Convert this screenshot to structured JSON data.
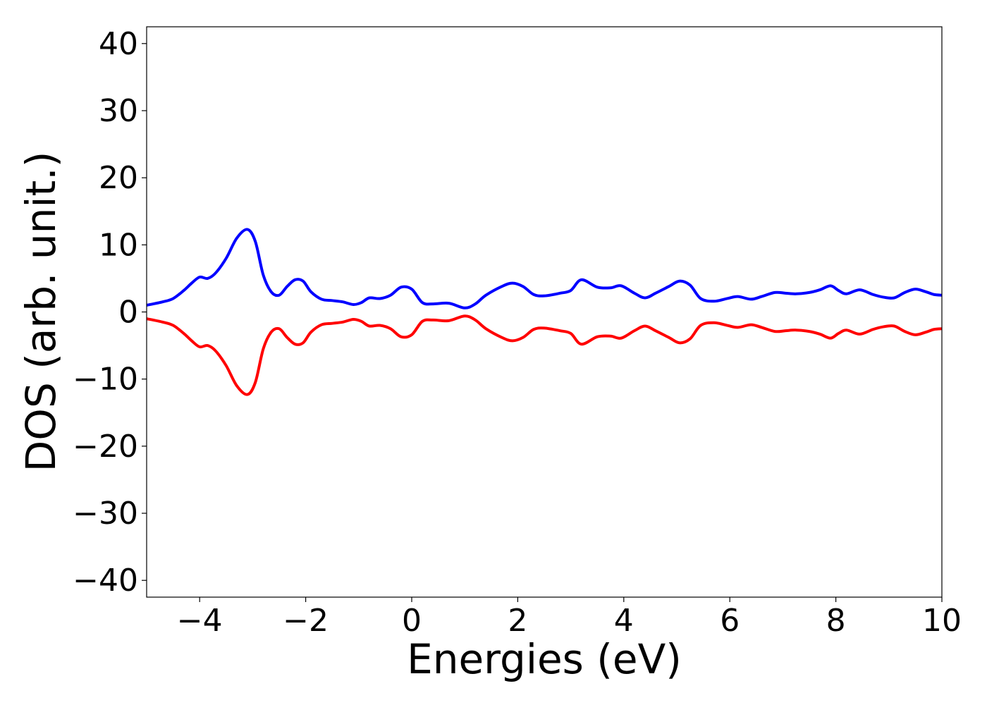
{
  "chart_data": {
    "type": "line",
    "title": "",
    "xlabel": "Energies (eV)",
    "ylabel": "DOS (arb. unit.)",
    "xlim": [
      -5,
      10
    ],
    "ylim": [
      -42.5,
      42.5
    ],
    "x_ticks": [
      -4,
      -2,
      0,
      2,
      4,
      6,
      8,
      10
    ],
    "y_ticks": [
      -40,
      -30,
      -20,
      -10,
      0,
      10,
      20,
      30,
      40
    ],
    "x_tick_labels": [
      "−4",
      "−2",
      "0",
      "2",
      "4",
      "6",
      "8",
      "10"
    ],
    "y_tick_labels": [
      "−40",
      "−30",
      "−20",
      "−10",
      "0",
      "10",
      "20",
      "30",
      "40"
    ],
    "grid": false,
    "series": [
      {
        "color": "#0000ff",
        "x": [
          -5.0,
          -4.7,
          -4.5,
          -4.3,
          -4.15,
          -4.0,
          -3.85,
          -3.7,
          -3.5,
          -3.3,
          -3.1,
          -2.95,
          -2.8,
          -2.65,
          -2.5,
          -2.35,
          -2.2,
          -2.05,
          -1.9,
          -1.7,
          -1.5,
          -1.3,
          -1.1,
          -0.95,
          -0.8,
          -0.6,
          -0.4,
          -0.2,
          0.0,
          0.2,
          0.4,
          0.7,
          1.0,
          1.2,
          1.4,
          1.7,
          1.9,
          2.1,
          2.3,
          2.5,
          2.8,
          3.0,
          3.2,
          3.5,
          3.75,
          3.95,
          4.2,
          4.4,
          4.6,
          4.85,
          5.05,
          5.25,
          5.45,
          5.7,
          5.95,
          6.15,
          6.4,
          6.6,
          6.85,
          7.05,
          7.25,
          7.5,
          7.7,
          7.9,
          8.05,
          8.2,
          8.45,
          8.7,
          8.9,
          9.1,
          9.3,
          9.5,
          9.7,
          9.85,
          10.0
        ],
        "y": [
          1.0,
          1.5,
          2.0,
          3.2,
          4.3,
          5.2,
          5.0,
          5.8,
          8.0,
          11.0,
          12.3,
          10.5,
          5.5,
          3.0,
          2.5,
          3.8,
          4.8,
          4.6,
          3.0,
          1.9,
          1.7,
          1.5,
          1.1,
          1.4,
          2.1,
          2.0,
          2.5,
          3.7,
          3.4,
          1.4,
          1.2,
          1.3,
          0.6,
          1.2,
          2.5,
          3.8,
          4.3,
          3.8,
          2.6,
          2.4,
          2.8,
          3.2,
          4.8,
          3.7,
          3.6,
          3.9,
          2.8,
          2.1,
          2.8,
          3.8,
          4.6,
          4.0,
          2.0,
          1.6,
          2.0,
          2.3,
          1.9,
          2.3,
          2.9,
          2.8,
          2.7,
          2.9,
          3.3,
          3.9,
          3.2,
          2.7,
          3.3,
          2.6,
          2.2,
          2.1,
          2.9,
          3.4,
          3.0,
          2.6,
          2.5
        ]
      },
      {
        "color": "#ff0000",
        "x": [
          -5.0,
          -4.7,
          -4.5,
          -4.3,
          -4.15,
          -4.0,
          -3.85,
          -3.7,
          -3.5,
          -3.3,
          -3.1,
          -2.95,
          -2.8,
          -2.65,
          -2.5,
          -2.35,
          -2.2,
          -2.05,
          -1.9,
          -1.7,
          -1.5,
          -1.3,
          -1.1,
          -0.95,
          -0.8,
          -0.6,
          -0.4,
          -0.2,
          0.0,
          0.2,
          0.4,
          0.7,
          1.0,
          1.2,
          1.4,
          1.7,
          1.9,
          2.1,
          2.3,
          2.5,
          2.8,
          3.0,
          3.2,
          3.5,
          3.75,
          3.95,
          4.2,
          4.4,
          4.6,
          4.85,
          5.05,
          5.25,
          5.45,
          5.7,
          5.95,
          6.15,
          6.4,
          6.6,
          6.85,
          7.05,
          7.25,
          7.5,
          7.7,
          7.9,
          8.05,
          8.2,
          8.45,
          8.7,
          8.9,
          9.1,
          9.3,
          9.5,
          9.7,
          9.85,
          10.0
        ],
        "y": [
          -1.0,
          -1.5,
          -2.0,
          -3.2,
          -4.3,
          -5.2,
          -5.0,
          -5.8,
          -8.0,
          -11.0,
          -12.3,
          -10.5,
          -5.5,
          -3.0,
          -2.5,
          -3.8,
          -4.8,
          -4.6,
          -3.0,
          -1.9,
          -1.7,
          -1.5,
          -1.1,
          -1.4,
          -2.1,
          -2.0,
          -2.5,
          -3.7,
          -3.4,
          -1.4,
          -1.2,
          -1.3,
          -0.6,
          -1.2,
          -2.5,
          -3.8,
          -4.3,
          -3.8,
          -2.6,
          -2.4,
          -2.8,
          -3.2,
          -4.8,
          -3.7,
          -3.6,
          -3.9,
          -2.8,
          -2.1,
          -2.8,
          -3.8,
          -4.6,
          -4.0,
          -2.0,
          -1.6,
          -2.0,
          -2.3,
          -1.9,
          -2.3,
          -2.9,
          -2.8,
          -2.7,
          -2.9,
          -3.3,
          -3.9,
          -3.2,
          -2.7,
          -3.3,
          -2.6,
          -2.2,
          -2.1,
          -2.9,
          -3.4,
          -3.0,
          -2.6,
          -2.5
        ]
      }
    ]
  }
}
